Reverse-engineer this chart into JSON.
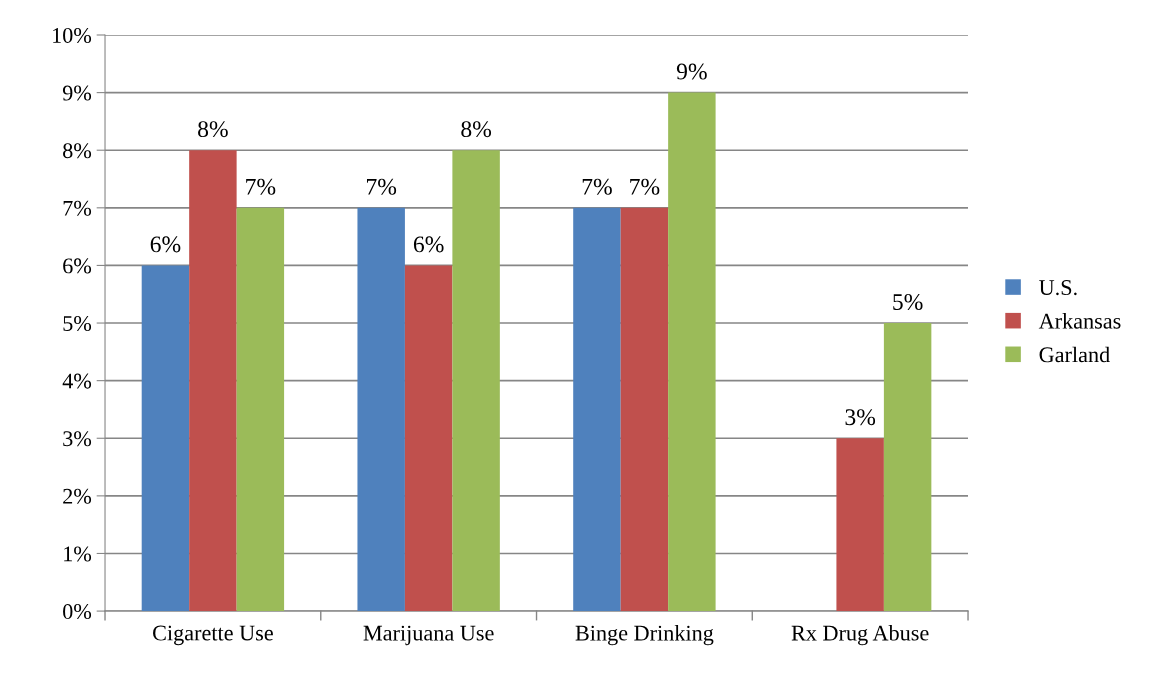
{
  "chart_data": {
    "type": "bar",
    "categories": [
      "Cigarette Use",
      "Marijuana Use",
      "Binge Drinking",
      "Rx Drug Abuse"
    ],
    "series": [
      {
        "name": "U.S.",
        "color": "#4f81bd",
        "values": [
          6,
          7,
          7,
          null
        ],
        "value_labels": [
          "6%",
          "7%",
          "7%",
          null
        ]
      },
      {
        "name": "Arkansas",
        "color": "#c0504d",
        "values": [
          8,
          6,
          7,
          3
        ],
        "value_labels": [
          "8%",
          "6%",
          "7%",
          "3%"
        ]
      },
      {
        "name": "Garland",
        "color": "#9bbb59",
        "values": [
          7,
          8,
          9,
          5
        ],
        "value_labels": [
          "7%",
          "8%",
          "9%",
          "5%"
        ]
      }
    ],
    "ylim": [
      0,
      10
    ],
    "yticks": [
      {
        "value": 0,
        "label": "0%"
      },
      {
        "value": 1,
        "label": "1%"
      },
      {
        "value": 2,
        "label": "2%"
      },
      {
        "value": 3,
        "label": "3%"
      },
      {
        "value": 4,
        "label": "4%"
      },
      {
        "value": 5,
        "label": "5%"
      },
      {
        "value": 6,
        "label": "6%"
      },
      {
        "value": 7,
        "label": "7%"
      },
      {
        "value": 8,
        "label": "8%"
      },
      {
        "value": 9,
        "label": "9%"
      },
      {
        "value": 10,
        "label": "10%"
      }
    ],
    "grid": "y",
    "legend": "right"
  }
}
